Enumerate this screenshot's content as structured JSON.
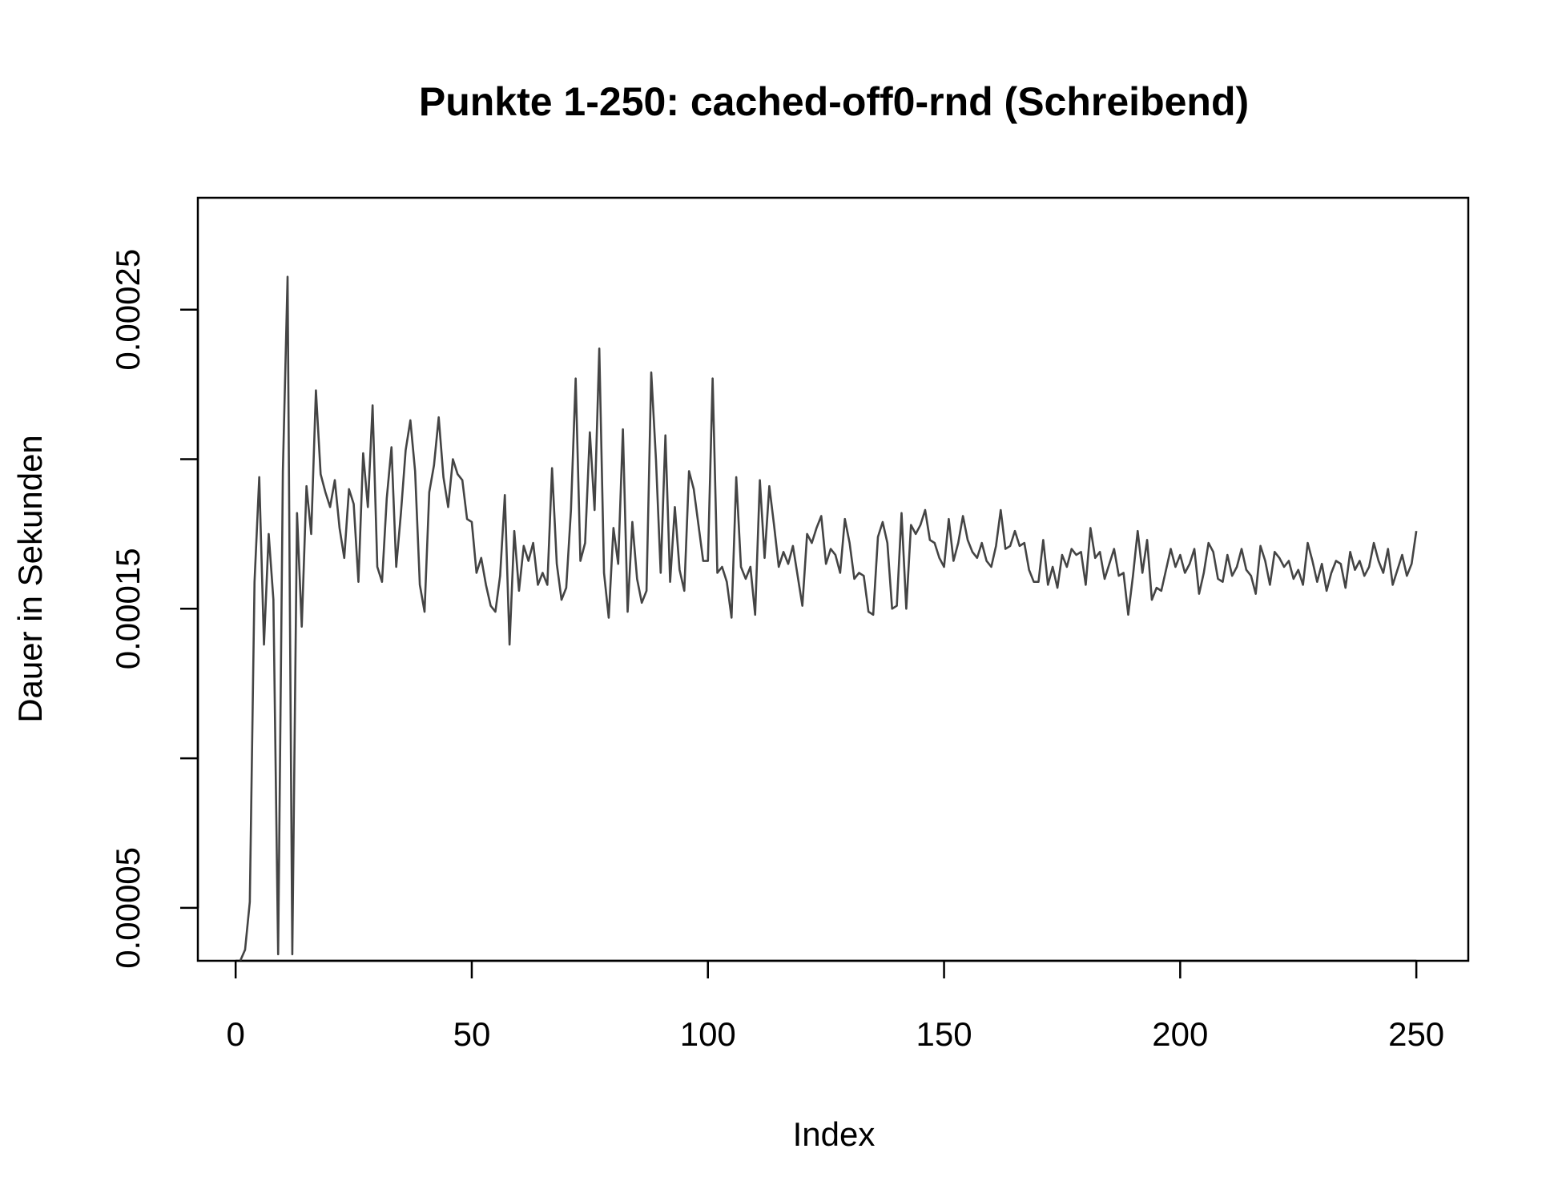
{
  "chart_data": {
    "type": "line",
    "title": "Punkte 1-250: cached-off0-rnd (Schreibend)",
    "xlabel": "Index",
    "ylabel": "Dauer in Sekunden",
    "xlim": [
      -8,
      261
    ],
    "ylim": [
      3.23e-05,
      0.0002874
    ],
    "x_ticks": [
      0,
      50,
      100,
      150,
      200,
      250
    ],
    "y_ticks": [
      5e-05,
      0.0001,
      0.00015,
      0.0002,
      0.00025
    ],
    "y_tick_labels": [
      "0.00005",
      "",
      "0.00015",
      "",
      "0.00025"
    ],
    "grid": false,
    "line_color": "#444444",
    "series": [
      {
        "values": [
          3.24e-05,
          3.6e-05,
          5.2e-05,
          0.000159,
          0.000194,
          0.000138,
          0.000175,
          0.000153,
          3.45e-05,
          0.000196,
          0.000261,
          3.45e-05,
          0.000182,
          0.000144,
          0.000191,
          0.000175,
          0.000223,
          0.000195,
          0.000189,
          0.000184,
          0.000193,
          0.000177,
          0.000167,
          0.00019,
          0.000185,
          0.000159,
          0.000202,
          0.000184,
          0.000218,
          0.000164,
          0.000159,
          0.000187,
          0.000204,
          0.000164,
          0.000182,
          0.000203,
          0.000213,
          0.000196,
          0.000158,
          0.000149,
          0.000189,
          0.000198,
          0.000214,
          0.000194,
          0.000184,
          0.0002,
          0.000195,
          0.000193,
          0.00018,
          0.000179,
          0.000162,
          0.000167,
          0.000158,
          0.000151,
          0.000149,
          0.000161,
          0.000188,
          0.000138,
          0.000176,
          0.000156,
          0.000171,
          0.000166,
          0.000172,
          0.000158,
          0.000162,
          0.000158,
          0.000197,
          0.000165,
          0.000153,
          0.000157,
          0.000183,
          0.000227,
          0.000166,
          0.000172,
          0.000209,
          0.000183,
          0.000237,
          0.000162,
          0.000147,
          0.000177,
          0.000165,
          0.00021,
          0.000149,
          0.000179,
          0.00016,
          0.000152,
          0.000156,
          0.000229,
          0.0002,
          0.000162,
          0.000208,
          0.000159,
          0.000184,
          0.000163,
          0.000156,
          0.000196,
          0.00019,
          0.000178,
          0.000166,
          0.000166,
          0.000227,
          0.000162,
          0.000164,
          0.000159,
          0.000147,
          0.000194,
          0.000164,
          0.00016,
          0.000164,
          0.000148,
          0.000193,
          0.000167,
          0.000191,
          0.000178,
          0.000164,
          0.000169,
          0.000165,
          0.000171,
          0.000161,
          0.000151,
          0.000175,
          0.000172,
          0.000177,
          0.000181,
          0.000165,
          0.00017,
          0.000168,
          0.000162,
          0.00018,
          0.000172,
          0.00016,
          0.000162,
          0.000161,
          0.000149,
          0.000148,
          0.000174,
          0.000179,
          0.000172,
          0.00015,
          0.000151,
          0.000182,
          0.00015,
          0.000178,
          0.000175,
          0.000178,
          0.000183,
          0.000173,
          0.000172,
          0.000167,
          0.000164,
          0.00018,
          0.000166,
          0.000172,
          0.000181,
          0.000173,
          0.000169,
          0.000167,
          0.000172,
          0.000166,
          0.000164,
          0.000171,
          0.000183,
          0.00017,
          0.000171,
          0.000176,
          0.000171,
          0.000172,
          0.000163,
          0.000159,
          0.000159,
          0.000173,
          0.000158,
          0.000164,
          0.000157,
          0.000168,
          0.000164,
          0.00017,
          0.000168,
          0.000169,
          0.000158,
          0.000177,
          0.000167,
          0.000169,
          0.00016,
          0.000165,
          0.00017,
          0.000161,
          0.000162,
          0.000148,
          0.000161,
          0.000176,
          0.000162,
          0.000173,
          0.000153,
          0.000157,
          0.000156,
          0.000163,
          0.00017,
          0.000164,
          0.000168,
          0.000162,
          0.000165,
          0.00017,
          0.000155,
          0.000162,
          0.000172,
          0.000169,
          0.00016,
          0.000159,
          0.000168,
          0.000161,
          0.000164,
          0.00017,
          0.000163,
          0.000161,
          0.000155,
          0.000171,
          0.000166,
          0.000158,
          0.000169,
          0.000167,
          0.000164,
          0.000166,
          0.00016,
          0.000163,
          0.000158,
          0.000172,
          0.000166,
          0.000159,
          0.000165,
          0.000156,
          0.000162,
          0.000166,
          0.000165,
          0.000157,
          0.000169,
          0.000163,
          0.000166,
          0.000161,
          0.000164,
          0.000172,
          0.000166,
          0.000162,
          0.00017,
          0.000158,
          0.000163,
          0.000168,
          0.000161,
          0.000165,
          0.000176
        ]
      }
    ]
  }
}
